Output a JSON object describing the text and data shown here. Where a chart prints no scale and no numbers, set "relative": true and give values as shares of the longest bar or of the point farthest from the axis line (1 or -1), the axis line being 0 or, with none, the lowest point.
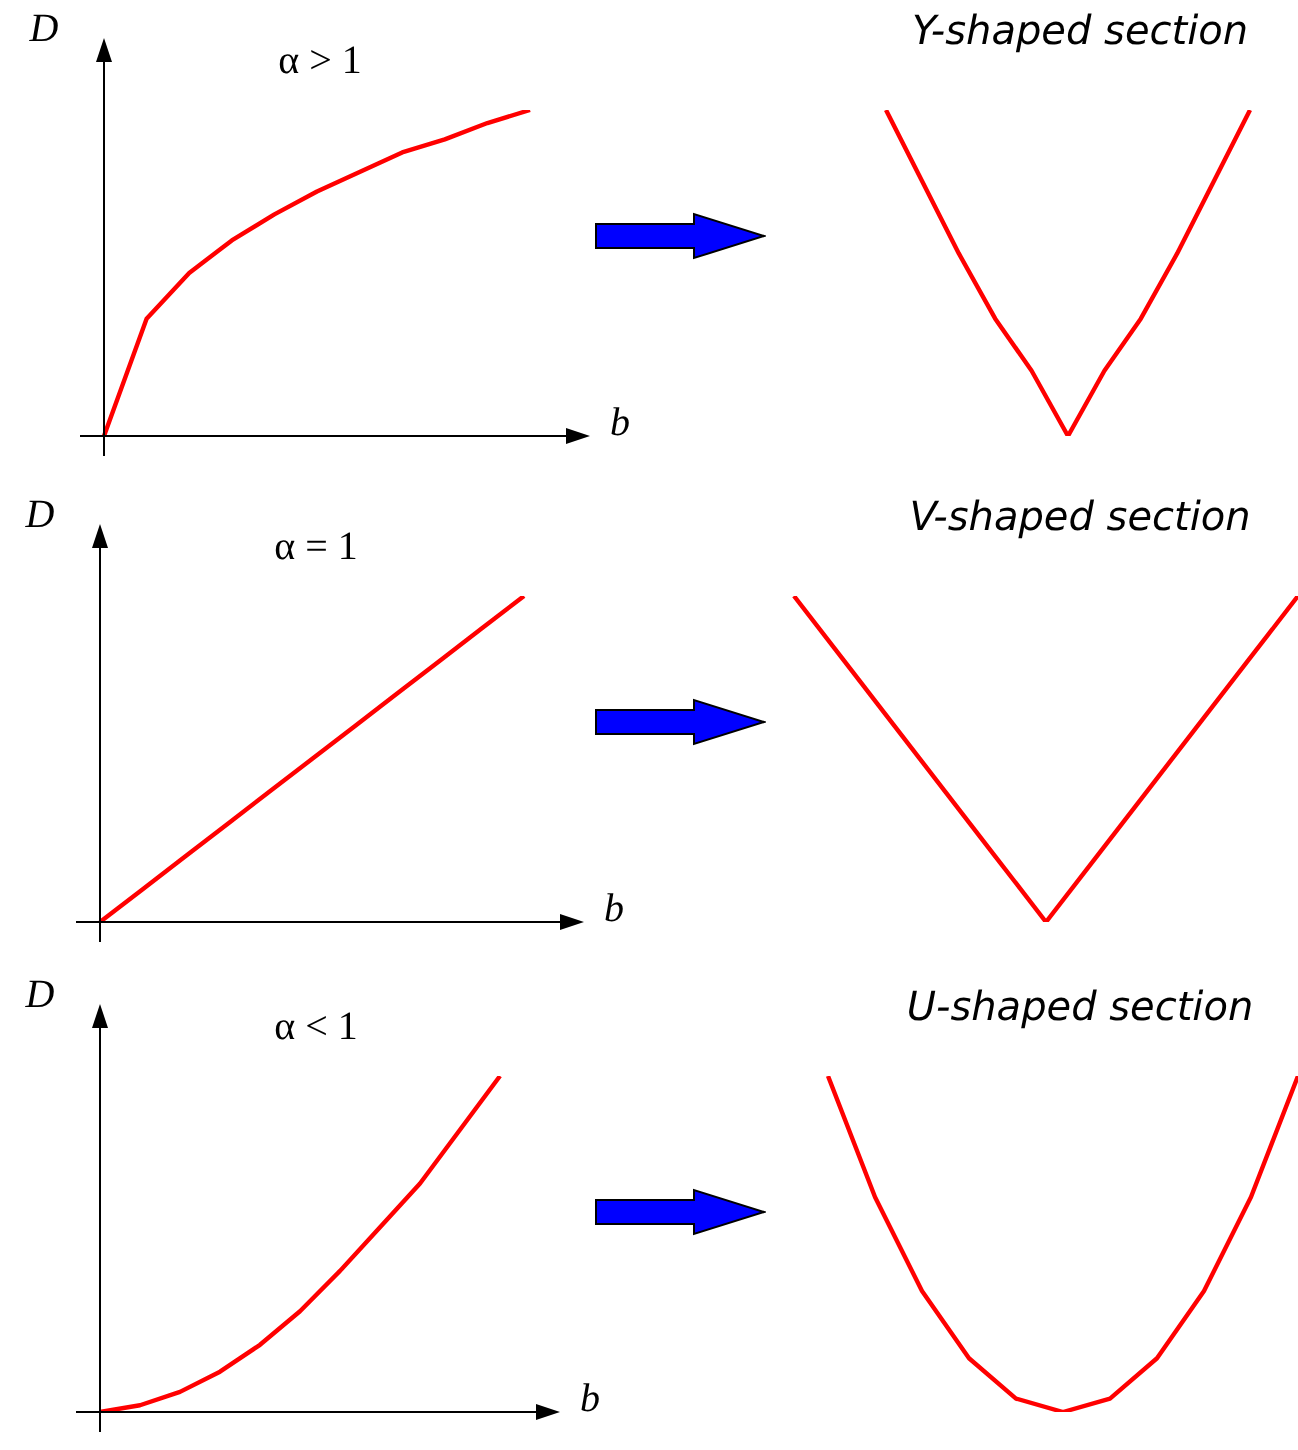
{
  "chart_data": [
    {
      "type": "line",
      "xlabel": "b",
      "ylabel": "D",
      "annotations": [
        "α > 1"
      ],
      "relative": true,
      "categories": [
        null,
        null,
        null,
        null,
        null,
        null,
        null,
        null,
        null,
        null,
        null
      ],
      "series": [
        {
          "color": "#ff0000",
          "values": [
            0,
            0.36,
            0.5,
            0.6,
            0.68,
            0.75,
            0.81,
            0.87,
            0.91,
            0.96,
            1
          ]
        }
      ]
    },
    {
      "type": "line",
      "title": "Y-shaped section",
      "relative": true,
      "categories": [
        null,
        null,
        null,
        null,
        null,
        null,
        null,
        null,
        null,
        null,
        null
      ],
      "series": [
        {
          "color": "#ff0000",
          "values": [
            1,
            0.78,
            0.56,
            0.36,
            0.2,
            0,
            0.2,
            0.36,
            0.56,
            0.78,
            1
          ]
        }
      ]
    },
    {
      "type": "line",
      "xlabel": "b",
      "ylabel": "D",
      "annotations": [
        "α = 1"
      ],
      "relative": true,
      "categories": [
        null,
        null,
        null,
        null,
        null,
        null,
        null,
        null,
        null,
        null,
        null
      ],
      "series": [
        {
          "color": "#ff0000",
          "values": [
            0,
            0.1,
            0.2,
            0.3,
            0.4,
            0.5,
            0.6,
            0.7,
            0.8,
            0.9,
            1
          ]
        }
      ]
    },
    {
      "type": "line",
      "title": "V-shaped section",
      "relative": true,
      "categories": [
        null,
        null,
        null,
        null,
        null,
        null,
        null,
        null,
        null,
        null,
        null
      ],
      "series": [
        {
          "color": "#ff0000",
          "values": [
            1,
            0.8,
            0.6,
            0.4,
            0.2,
            0,
            0.2,
            0.4,
            0.6,
            0.8,
            1
          ]
        }
      ]
    },
    {
      "type": "line",
      "xlabel": "b",
      "ylabel": "D",
      "annotations": [
        "α < 1"
      ],
      "relative": true,
      "categories": [
        null,
        null,
        null,
        null,
        null,
        null,
        null,
        null,
        null,
        null,
        null
      ],
      "series": [
        {
          "color": "#ff0000",
          "values": [
            0,
            0.02,
            0.06,
            0.12,
            0.2,
            0.3,
            0.42,
            0.55,
            0.68,
            0.84,
            1
          ]
        }
      ]
    },
    {
      "type": "line",
      "title": "U-shaped section",
      "relative": true,
      "categories": [
        null,
        null,
        null,
        null,
        null,
        null,
        null,
        null,
        null,
        null,
        null
      ],
      "series": [
        {
          "color": "#ff0000",
          "values": [
            1,
            0.64,
            0.36,
            0.16,
            0.04,
            0,
            0.04,
            0.16,
            0.36,
            0.64,
            1
          ]
        }
      ]
    }
  ]
}
